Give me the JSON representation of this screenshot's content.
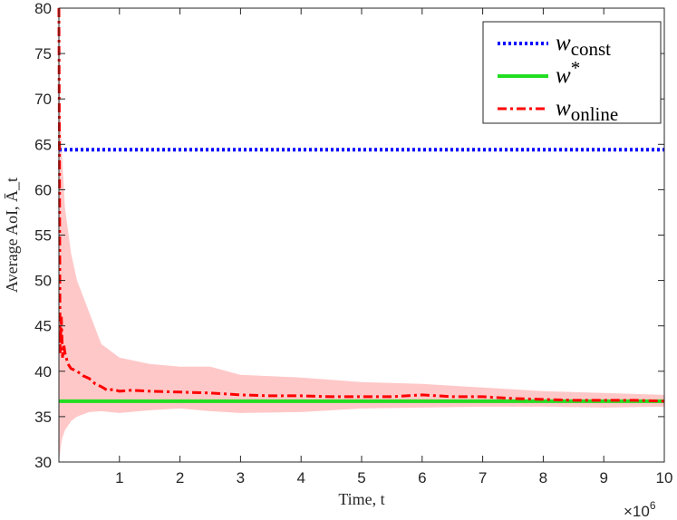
{
  "chart_data": {
    "type": "line",
    "xlabel": "Time, t",
    "ylabel": "Average AoI, Ā_t",
    "x_exponent_label": "×10",
    "x_exponent_power": "6",
    "xlim": [
      0,
      10
    ],
    "ylim": [
      30,
      80
    ],
    "x_ticks": [
      1,
      2,
      3,
      4,
      5,
      6,
      7,
      8,
      9,
      10
    ],
    "y_ticks": [
      30,
      35,
      40,
      45,
      50,
      55,
      60,
      65,
      70,
      75,
      80
    ],
    "grid": false,
    "legend_position": "top-right",
    "series": [
      {
        "name": "w_const",
        "legend_main": "w",
        "legend_sub": "const",
        "color": "#0000ff",
        "style": "dotted",
        "x": [
          0,
          10
        ],
        "y": [
          64.4,
          64.4
        ]
      },
      {
        "name": "w*",
        "legend_main": "w",
        "legend_sub": "*",
        "color": "#22dd22",
        "style": "solid",
        "x": [
          0,
          10
        ],
        "y": [
          36.7,
          36.7
        ]
      },
      {
        "name": "w_online",
        "legend_main": "w",
        "legend_sub": "online",
        "color": "#ff0000",
        "style": "dashdot",
        "x": [
          0,
          0.02,
          0.04,
          0.06,
          0.08,
          0.1,
          0.15,
          0.2,
          0.3,
          0.4,
          0.5,
          0.6,
          0.7,
          0.8,
          0.9,
          1.0,
          1.2,
          1.5,
          2.0,
          2.5,
          3.0,
          3.5,
          4.0,
          4.5,
          5.0,
          5.5,
          6.0,
          6.5,
          7.0,
          7.5,
          8.0,
          8.5,
          9.0,
          9.5,
          10.0
        ],
        "y": [
          80,
          42,
          46,
          41.5,
          43,
          42,
          40.8,
          40.3,
          40.0,
          39.5,
          39.2,
          38.6,
          38.3,
          37.9,
          38.0,
          37.8,
          37.9,
          37.8,
          37.7,
          37.6,
          37.4,
          37.3,
          37.3,
          37.2,
          37.2,
          37.2,
          37.4,
          37.2,
          37.2,
          37.0,
          36.9,
          36.8,
          36.8,
          36.8,
          36.7
        ]
      }
    ],
    "confidence_band": {
      "color": "#ffc8c8",
      "x": [
        0,
        0.02,
        0.05,
        0.1,
        0.2,
        0.3,
        0.5,
        0.7,
        1.0,
        1.5,
        2.0,
        2.5,
        3.0,
        4.0,
        5.0,
        6.0,
        7.0,
        8.0,
        9.0,
        10.0
      ],
      "upper": [
        80,
        70,
        64,
        58,
        53,
        50,
        46.5,
        43,
        41.5,
        40.8,
        40.5,
        40.5,
        39.6,
        39.3,
        38.8,
        38.6,
        38.2,
        37.8,
        37.6,
        37.4
      ],
      "lower": [
        30,
        31,
        32.5,
        33.5,
        34.5,
        35,
        35.5,
        35.6,
        35.4,
        35.7,
        35.9,
        35.6,
        35.4,
        35.5,
        35.9,
        36.0,
        36.1,
        36.1,
        36.0,
        36.1
      ]
    }
  }
}
